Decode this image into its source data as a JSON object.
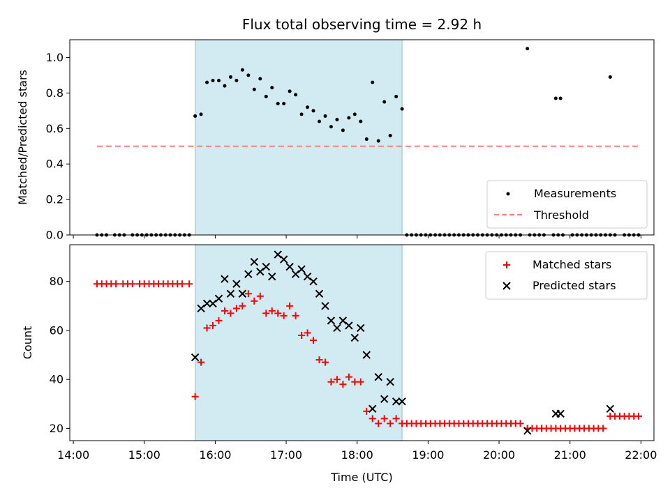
{
  "chart_data": [
    {
      "type": "scatter",
      "title": "Flux total observing time = 2.92 h",
      "xlabel": "",
      "ylabel": "Matched/Predicted stars",
      "ylim": [
        0,
        1.1
      ],
      "xlim": [
        "14:00",
        "22:00"
      ],
      "yticks": [
        "0.0",
        "0.2",
        "0.4",
        "0.6",
        "0.8",
        "1.0"
      ],
      "shaded_region": {
        "start": "15:43",
        "end": "18:38",
        "color": "#add8e6"
      },
      "legend": {
        "placement": "lower right",
        "entries": [
          "Measurements",
          "Threshold"
        ]
      },
      "series": [
        {
          "name": "Measurements",
          "marker": "dot",
          "color": "#000000",
          "points": [
            [
              "14:20",
              0
            ],
            [
              "14:24",
              0
            ],
            [
              "14:28",
              0
            ],
            [
              "14:35",
              0
            ],
            [
              "14:39",
              0
            ],
            [
              "14:43",
              0
            ],
            [
              "14:50",
              0
            ],
            [
              "14:54",
              0
            ],
            [
              "14:58",
              0
            ],
            [
              "15:02",
              0
            ],
            [
              "15:06",
              0
            ],
            [
              "15:10",
              0
            ],
            [
              "15:14",
              0
            ],
            [
              "15:18",
              0
            ],
            [
              "15:22",
              0
            ],
            [
              "15:26",
              0
            ],
            [
              "15:30",
              0
            ],
            [
              "15:34",
              0
            ],
            [
              "15:38",
              0
            ],
            [
              "15:43",
              0.67
            ],
            [
              "15:48",
              0.68
            ],
            [
              "15:53",
              0.86
            ],
            [
              "15:58",
              0.87
            ],
            [
              "16:03",
              0.87
            ],
            [
              "16:08",
              0.84
            ],
            [
              "16:13",
              0.89
            ],
            [
              "16:18",
              0.87
            ],
            [
              "16:23",
              0.93
            ],
            [
              "16:28",
              0.9
            ],
            [
              "16:33",
              0.82
            ],
            [
              "16:38",
              0.88
            ],
            [
              "16:43",
              0.78
            ],
            [
              "16:48",
              0.83
            ],
            [
              "16:53",
              0.74
            ],
            [
              "16:58",
              0.74
            ],
            [
              "17:03",
              0.81
            ],
            [
              "17:08",
              0.79
            ],
            [
              "17:13",
              0.68
            ],
            [
              "17:18",
              0.72
            ],
            [
              "17:23",
              0.7
            ],
            [
              "17:28",
              0.64
            ],
            [
              "17:33",
              0.67
            ],
            [
              "17:38",
              0.61
            ],
            [
              "17:43",
              0.65
            ],
            [
              "17:48",
              0.59
            ],
            [
              "17:53",
              0.66
            ],
            [
              "17:58",
              0.68
            ],
            [
              "18:03",
              0.64
            ],
            [
              "18:08",
              0.54
            ],
            [
              "18:13",
              0.86
            ],
            [
              "18:18",
              0.53
            ],
            [
              "18:23",
              0.75
            ],
            [
              "18:28",
              0.56
            ],
            [
              "18:33",
              0.78
            ],
            [
              "18:38",
              0.71
            ],
            [
              "18:42",
              0
            ],
            [
              "18:46",
              0
            ],
            [
              "18:50",
              0
            ],
            [
              "18:54",
              0
            ],
            [
              "18:58",
              0
            ],
            [
              "19:02",
              0
            ],
            [
              "19:06",
              0
            ],
            [
              "19:10",
              0
            ],
            [
              "19:14",
              0
            ],
            [
              "19:18",
              0
            ],
            [
              "19:22",
              0
            ],
            [
              "19:26",
              0
            ],
            [
              "19:30",
              0
            ],
            [
              "19:34",
              0
            ],
            [
              "19:38",
              0
            ],
            [
              "19:42",
              0
            ],
            [
              "19:46",
              0
            ],
            [
              "19:50",
              0
            ],
            [
              "19:54",
              0
            ],
            [
              "19:58",
              0
            ],
            [
              "20:02",
              0
            ],
            [
              "20:06",
              0
            ],
            [
              "20:10",
              0
            ],
            [
              "20:14",
              0
            ],
            [
              "20:18",
              0
            ],
            [
              "20:26",
              0
            ],
            [
              "20:30",
              0
            ],
            [
              "20:34",
              0
            ],
            [
              "20:38",
              0
            ],
            [
              "20:24",
              1.05
            ],
            [
              "20:48",
              0.77
            ],
            [
              "20:52",
              0.77
            ],
            [
              "20:46",
              0
            ],
            [
              "20:50",
              0
            ],
            [
              "20:54",
              0
            ],
            [
              "21:02",
              0
            ],
            [
              "21:06",
              0
            ],
            [
              "21:10",
              0
            ],
            [
              "21:14",
              0
            ],
            [
              "21:18",
              0
            ],
            [
              "21:22",
              0
            ],
            [
              "21:26",
              0
            ],
            [
              "21:30",
              0
            ],
            [
              "21:34",
              0
            ],
            [
              "21:38",
              0
            ],
            [
              "21:34",
              0.89
            ],
            [
              "21:46",
              0
            ],
            [
              "21:50",
              0
            ],
            [
              "21:54",
              0
            ],
            [
              "21:58",
              0
            ]
          ]
        },
        {
          "name": "Threshold",
          "marker": "dashed-line",
          "color": "#ff7f7f",
          "points": [
            [
              "14:20",
              0.5
            ],
            [
              "21:58",
              0.5
            ]
          ]
        }
      ]
    },
    {
      "type": "scatter",
      "title": "",
      "xlabel": "Time (UTC)",
      "ylabel": "Count",
      "ylim": [
        15,
        95
      ],
      "xlim": [
        "14:00",
        "22:00"
      ],
      "xticks": [
        "14:00",
        "15:00",
        "16:00",
        "17:00",
        "18:00",
        "19:00",
        "20:00",
        "21:00",
        "22:00"
      ],
      "yticks": [
        "20",
        "40",
        "60",
        "80"
      ],
      "shaded_region": {
        "start": "15:43",
        "end": "18:38",
        "color": "#add8e6"
      },
      "legend": {
        "placement": "upper right",
        "entries": [
          "Matched stars",
          "Predicted stars"
        ]
      },
      "series": [
        {
          "name": "Matched stars",
          "marker": "plus",
          "color": "#ff0000",
          "points": [
            [
              "14:20",
              79
            ],
            [
              "14:24",
              79
            ],
            [
              "14:28",
              79
            ],
            [
              "14:32",
              79
            ],
            [
              "14:36",
              79
            ],
            [
              "14:42",
              79
            ],
            [
              "14:46",
              79
            ],
            [
              "14:50",
              79
            ],
            [
              "14:56",
              79
            ],
            [
              "15:00",
              79
            ],
            [
              "15:04",
              79
            ],
            [
              "15:08",
              79
            ],
            [
              "15:12",
              79
            ],
            [
              "15:16",
              79
            ],
            [
              "15:20",
              79
            ],
            [
              "15:24",
              79
            ],
            [
              "15:28",
              79
            ],
            [
              "15:32",
              79
            ],
            [
              "15:38",
              79
            ],
            [
              "15:43",
              33
            ],
            [
              "15:48",
              47
            ],
            [
              "15:53",
              61
            ],
            [
              "15:58",
              62
            ],
            [
              "16:03",
              64
            ],
            [
              "16:08",
              68
            ],
            [
              "16:13",
              67
            ],
            [
              "16:18",
              69
            ],
            [
              "16:23",
              70
            ],
            [
              "16:28",
              75
            ],
            [
              "16:33",
              72
            ],
            [
              "16:38",
              74
            ],
            [
              "16:43",
              67
            ],
            [
              "16:48",
              68
            ],
            [
              "16:53",
              67
            ],
            [
              "16:58",
              66
            ],
            [
              "17:03",
              70
            ],
            [
              "17:08",
              66
            ],
            [
              "17:13",
              58
            ],
            [
              "17:18",
              59
            ],
            [
              "17:23",
              56
            ],
            [
              "17:28",
              48
            ],
            [
              "17:33",
              47
            ],
            [
              "17:38",
              39
            ],
            [
              "17:43",
              40
            ],
            [
              "17:48",
              38
            ],
            [
              "17:53",
              41
            ],
            [
              "17:58",
              39
            ],
            [
              "18:03",
              39
            ],
            [
              "18:08",
              27
            ],
            [
              "18:13",
              24
            ],
            [
              "18:18",
              22
            ],
            [
              "18:23",
              24
            ],
            [
              "18:28",
              22
            ],
            [
              "18:33",
              24
            ],
            [
              "18:38",
              22
            ],
            [
              "18:42",
              22
            ],
            [
              "18:46",
              22
            ],
            [
              "18:50",
              22
            ],
            [
              "18:54",
              22
            ],
            [
              "18:58",
              22
            ],
            [
              "19:02",
              22
            ],
            [
              "19:06",
              22
            ],
            [
              "19:10",
              22
            ],
            [
              "19:14",
              22
            ],
            [
              "19:18",
              22
            ],
            [
              "19:22",
              22
            ],
            [
              "19:26",
              22
            ],
            [
              "19:30",
              22
            ],
            [
              "19:34",
              22
            ],
            [
              "19:38",
              22
            ],
            [
              "19:42",
              22
            ],
            [
              "19:46",
              22
            ],
            [
              "19:50",
              22
            ],
            [
              "19:54",
              22
            ],
            [
              "19:58",
              22
            ],
            [
              "20:02",
              22
            ],
            [
              "20:06",
              22
            ],
            [
              "20:10",
              22
            ],
            [
              "20:14",
              22
            ],
            [
              "20:18",
              22
            ],
            [
              "20:24",
              20
            ],
            [
              "20:28",
              20
            ],
            [
              "20:32",
              20
            ],
            [
              "20:36",
              20
            ],
            [
              "20:40",
              20
            ],
            [
              "20:44",
              20
            ],
            [
              "20:48",
              20
            ],
            [
              "20:52",
              20
            ],
            [
              "20:56",
              20
            ],
            [
              "21:00",
              20
            ],
            [
              "21:04",
              20
            ],
            [
              "21:08",
              20
            ],
            [
              "21:12",
              20
            ],
            [
              "21:16",
              20
            ],
            [
              "21:20",
              20
            ],
            [
              "21:24",
              20
            ],
            [
              "21:28",
              20
            ],
            [
              "21:34",
              25
            ],
            [
              "21:38",
              25
            ],
            [
              "21:42",
              25
            ],
            [
              "21:46",
              25
            ],
            [
              "21:50",
              25
            ],
            [
              "21:54",
              25
            ],
            [
              "21:58",
              25
            ]
          ]
        },
        {
          "name": "Predicted stars",
          "marker": "x",
          "color": "#000000",
          "points": [
            [
              "15:43",
              49
            ],
            [
              "15:48",
              69
            ],
            [
              "15:53",
              71
            ],
            [
              "15:58",
              71
            ],
            [
              "16:03",
              73
            ],
            [
              "16:08",
              81
            ],
            [
              "16:13",
              75
            ],
            [
              "16:18",
              79
            ],
            [
              "16:23",
              75
            ],
            [
              "16:28",
              83
            ],
            [
              "16:33",
              88
            ],
            [
              "16:38",
              84
            ],
            [
              "16:43",
              86
            ],
            [
              "16:48",
              82
            ],
            [
              "16:53",
              91
            ],
            [
              "16:58",
              89
            ],
            [
              "17:03",
              86
            ],
            [
              "17:08",
              83
            ],
            [
              "17:13",
              85
            ],
            [
              "17:18",
              82
            ],
            [
              "17:23",
              80
            ],
            [
              "17:28",
              75
            ],
            [
              "17:33",
              70
            ],
            [
              "17:38",
              64
            ],
            [
              "17:43",
              61
            ],
            [
              "17:48",
              64
            ],
            [
              "17:53",
              62
            ],
            [
              "17:58",
              57
            ],
            [
              "18:03",
              61
            ],
            [
              "18:08",
              50
            ],
            [
              "18:13",
              28
            ],
            [
              "18:18",
              41
            ],
            [
              "18:23",
              32
            ],
            [
              "18:28",
              39
            ],
            [
              "18:33",
              31
            ],
            [
              "18:38",
              31
            ],
            [
              "20:24",
              19
            ],
            [
              "20:48",
              26
            ],
            [
              "20:52",
              26
            ],
            [
              "21:34",
              28
            ]
          ]
        }
      ]
    }
  ]
}
